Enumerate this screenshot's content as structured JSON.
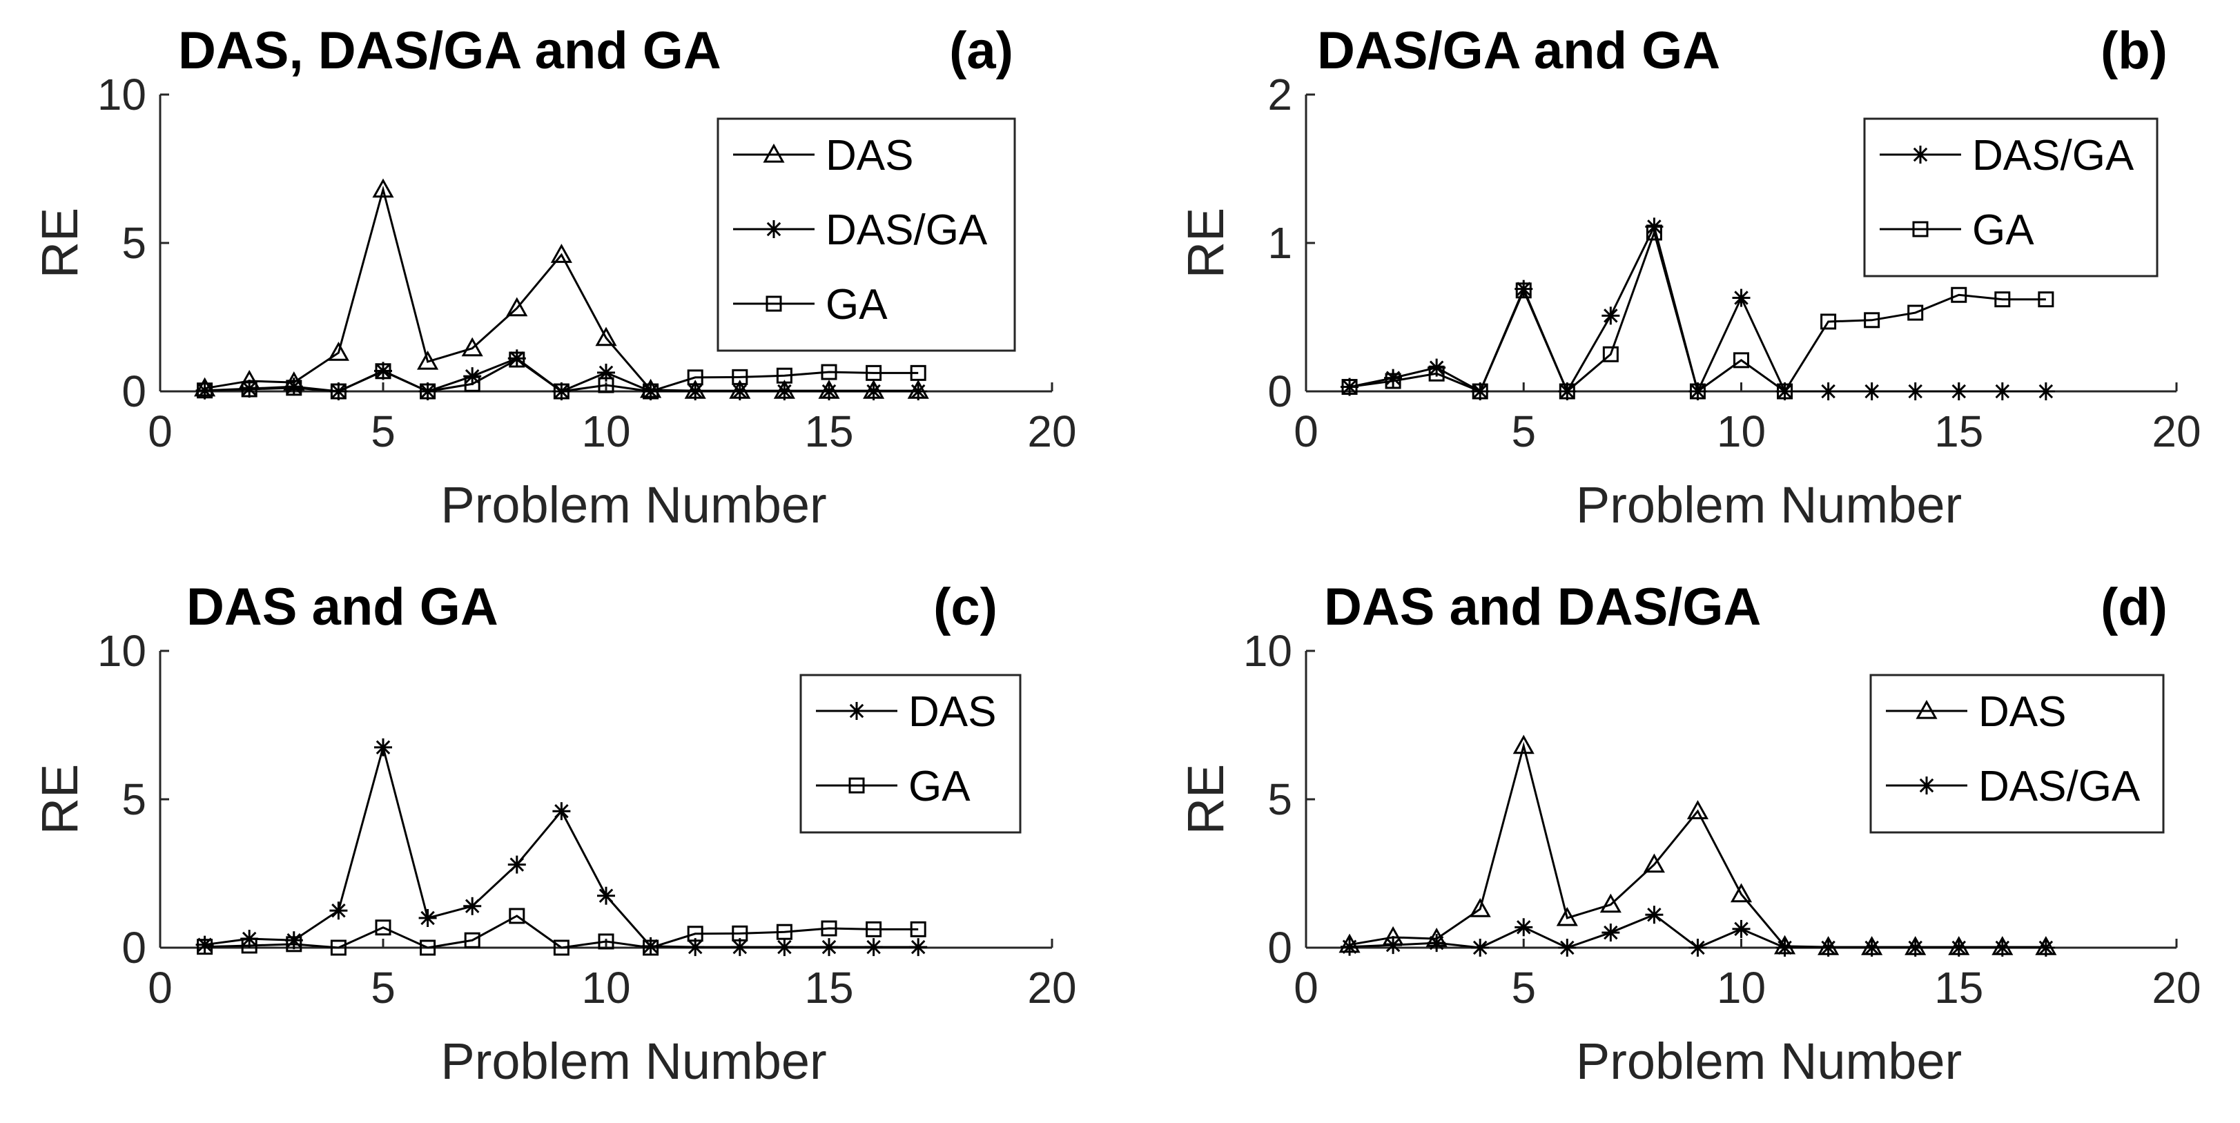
{
  "chart_data": [
    {
      "type": "line",
      "panel": "(a)",
      "title": "DAS, DAS/GA and GA",
      "xlabel": "Problem Number",
      "ylabel": "RE",
      "xlim": [
        0,
        20
      ],
      "ylim": [
        0,
        10
      ],
      "xticks": [
        0,
        5,
        10,
        15,
        20
      ],
      "yticks": [
        0,
        5,
        10
      ],
      "grid": false,
      "legend_position": "top-right",
      "x": [
        1,
        2,
        3,
        4,
        5,
        6,
        7,
        8,
        9,
        10,
        11,
        12,
        13,
        14,
        15,
        16,
        17
      ],
      "series": [
        {
          "name": "DAS",
          "marker": "triangle",
          "values": [
            0.1,
            0.35,
            0.3,
            1.3,
            6.8,
            1.0,
            1.45,
            2.8,
            4.6,
            1.8,
            0.05,
            0.02,
            0.02,
            0.02,
            0.02,
            0.02,
            0.02
          ]
        },
        {
          "name": "DAS/GA",
          "marker": "asterisk",
          "values": [
            0.03,
            0.09,
            0.16,
            0.0,
            0.69,
            0.0,
            0.51,
            1.11,
            0.0,
            0.63,
            0.0,
            0.0,
            0.0,
            0.0,
            0.0,
            0.0,
            0.0
          ]
        },
        {
          "name": "GA",
          "marker": "square",
          "values": [
            0.03,
            0.07,
            0.12,
            0.0,
            0.68,
            0.0,
            0.25,
            1.07,
            0.0,
            0.21,
            0.0,
            0.47,
            0.48,
            0.53,
            0.65,
            0.62,
            0.62
          ]
        }
      ]
    },
    {
      "type": "line",
      "panel": "(b)",
      "title": "DAS/GA and GA",
      "xlabel": "Problem Number",
      "ylabel": "RE",
      "xlim": [
        0,
        20
      ],
      "ylim": [
        0,
        2
      ],
      "xticks": [
        0,
        5,
        10,
        15,
        20
      ],
      "yticks": [
        0,
        1,
        2
      ],
      "grid": false,
      "legend_position": "top-right",
      "x": [
        1,
        2,
        3,
        4,
        5,
        6,
        7,
        8,
        9,
        10,
        11,
        12,
        13,
        14,
        15,
        16,
        17
      ],
      "series": [
        {
          "name": "DAS/GA",
          "marker": "asterisk",
          "values": [
            0.03,
            0.09,
            0.16,
            0.0,
            0.69,
            0.0,
            0.51,
            1.11,
            0.0,
            0.63,
            0.0,
            0.0,
            0.0,
            0.0,
            0.0,
            0.0,
            0.0
          ]
        },
        {
          "name": "GA",
          "marker": "square",
          "values": [
            0.03,
            0.07,
            0.12,
            0.0,
            0.68,
            0.0,
            0.25,
            1.07,
            0.0,
            0.21,
            0.0,
            0.47,
            0.48,
            0.53,
            0.65,
            0.62,
            0.62
          ]
        }
      ]
    },
    {
      "type": "line",
      "panel": "(c)",
      "title": "DAS and GA",
      "xlabel": "Problem Number",
      "ylabel": "RE",
      "xlim": [
        0,
        20
      ],
      "ylim": [
        0,
        10
      ],
      "xticks": [
        0,
        5,
        10,
        15,
        20
      ],
      "yticks": [
        0,
        5,
        10
      ],
      "grid": false,
      "legend_position": "top-right",
      "x": [
        1,
        2,
        3,
        4,
        5,
        6,
        7,
        8,
        9,
        10,
        11,
        12,
        13,
        14,
        15,
        16,
        17
      ],
      "series": [
        {
          "name": "DAS",
          "marker": "asterisk",
          "values": [
            0.1,
            0.3,
            0.25,
            1.25,
            6.75,
            1.0,
            1.4,
            2.8,
            4.6,
            1.75,
            0.05,
            0.02,
            0.02,
            0.02,
            0.02,
            0.02,
            0.02
          ]
        },
        {
          "name": "GA",
          "marker": "square",
          "values": [
            0.03,
            0.07,
            0.12,
            0.0,
            0.68,
            0.0,
            0.25,
            1.07,
            0.0,
            0.21,
            0.0,
            0.47,
            0.48,
            0.53,
            0.65,
            0.62,
            0.62
          ]
        }
      ]
    },
    {
      "type": "line",
      "panel": "(d)",
      "title": "DAS and DAS/GA",
      "xlabel": "Problem Number",
      "ylabel": "RE",
      "xlim": [
        0,
        20
      ],
      "ylim": [
        0,
        10
      ],
      "xticks": [
        0,
        5,
        10,
        15,
        20
      ],
      "yticks": [
        0,
        5,
        10
      ],
      "grid": false,
      "legend_position": "top-right",
      "x": [
        1,
        2,
        3,
        4,
        5,
        6,
        7,
        8,
        9,
        10,
        11,
        12,
        13,
        14,
        15,
        16,
        17
      ],
      "series": [
        {
          "name": "DAS",
          "marker": "triangle",
          "values": [
            0.1,
            0.35,
            0.3,
            1.3,
            6.8,
            1.0,
            1.45,
            2.8,
            4.6,
            1.8,
            0.05,
            0.02,
            0.02,
            0.02,
            0.02,
            0.02,
            0.02
          ]
        },
        {
          "name": "DAS/GA",
          "marker": "asterisk",
          "values": [
            0.03,
            0.09,
            0.16,
            0.0,
            0.69,
            0.0,
            0.51,
            1.11,
            0.0,
            0.63,
            0.0,
            0.0,
            0.0,
            0.0,
            0.0,
            0.0,
            0.0
          ]
        }
      ]
    }
  ]
}
